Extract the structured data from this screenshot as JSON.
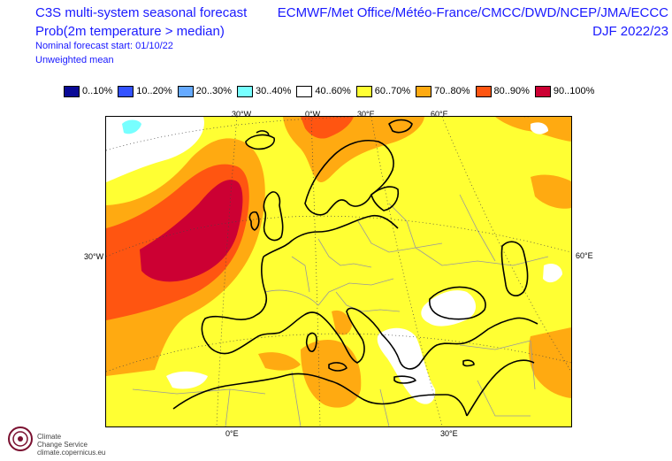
{
  "header": {
    "title_left": "C3S multi-system seasonal forecast",
    "subtitle_left": "Prob(2m temperature > median)",
    "forecast_start": "Nominal forecast start: 01/10/22",
    "mean_type": "Unweighted mean",
    "title_right": "ECMWF/Met Office/Météo-France/CMCC/DWD/NCEP/JMA/ECCC",
    "period_right": "DJF 2022/23"
  },
  "legend": [
    {
      "label": "0..10%",
      "color": "#0a0a96"
    },
    {
      "label": "10..20%",
      "color": "#3352ff"
    },
    {
      "label": "20..30%",
      "color": "#66aaff"
    },
    {
      "label": "30..40%",
      "color": "#77ffff"
    },
    {
      "label": "40..60%",
      "color": "#ffffff"
    },
    {
      "label": "60..70%",
      "color": "#ffff33"
    },
    {
      "label": "70..80%",
      "color": "#ffaa11"
    },
    {
      "label": "80..90%",
      "color": "#ff5511"
    },
    {
      "label": "90..100%",
      "color": "#cc0033"
    }
  ],
  "graticule_labels": {
    "top": [
      "30°W",
      "0°W",
      "30°E",
      "60°E"
    ],
    "bottom": [
      "0°E",
      "30°E"
    ],
    "left": "30°W",
    "right": "60°E"
  },
  "logo": {
    "line1": "Climate",
    "line2": "Change Service",
    "line3": "climate.copernicus.eu"
  }
}
